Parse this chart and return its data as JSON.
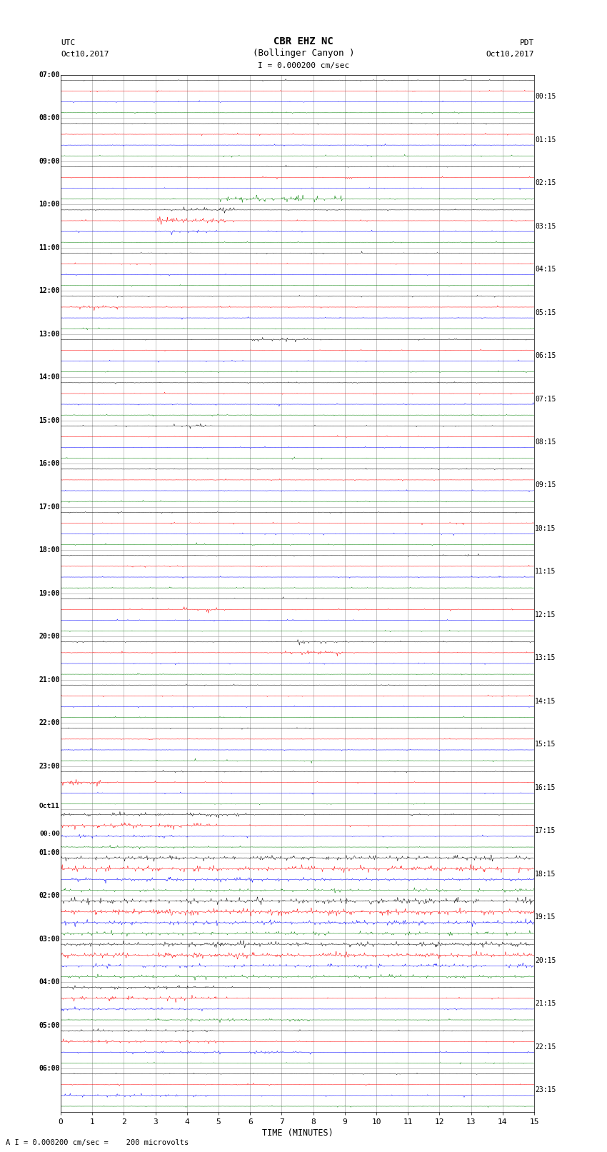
{
  "title_line1": "CBR EHZ NC",
  "title_line2": "(Bollinger Canyon )",
  "scale_label": "I = 0.000200 cm/sec",
  "footer_label": "A I = 0.000200 cm/sec =    200 microvolts",
  "left_header_line1": "UTC",
  "left_header_line2": "Oct10,2017",
  "right_header_line1": "PDT",
  "right_header_line2": "Oct10,2017",
  "xlabel": "TIME (MINUTES)",
  "utc_labels": [
    "07:00",
    "08:00",
    "09:00",
    "10:00",
    "11:00",
    "12:00",
    "13:00",
    "14:00",
    "15:00",
    "16:00",
    "17:00",
    "18:00",
    "19:00",
    "20:00",
    "21:00",
    "22:00",
    "23:00",
    "Oct11\n00:00",
    "01:00",
    "02:00",
    "03:00",
    "04:00",
    "05:00",
    "06:00"
  ],
  "pdt_labels": [
    "00:15",
    "01:15",
    "02:15",
    "03:15",
    "04:15",
    "05:15",
    "06:15",
    "07:15",
    "08:15",
    "09:15",
    "10:15",
    "11:15",
    "12:15",
    "13:15",
    "14:15",
    "15:15",
    "16:15",
    "17:15",
    "18:15",
    "19:15",
    "20:15",
    "21:15",
    "22:15",
    "23:15"
  ],
  "num_rows": 24,
  "traces_per_row": 4,
  "trace_colors": [
    "black",
    "red",
    "blue",
    "green"
  ],
  "background_color": "white",
  "grid_color": "#999999",
  "figsize": [
    8.5,
    16.13
  ],
  "dpi": 100,
  "base_noise": 0.012,
  "spike_rate": 0.015,
  "spike_amp": 0.12,
  "xmin": 0,
  "xmax": 15,
  "xticks": [
    0,
    1,
    2,
    3,
    4,
    5,
    6,
    7,
    8,
    9,
    10,
    11,
    12,
    13,
    14,
    15
  ],
  "row_events": {
    "2": [
      {
        "trace": 3,
        "t0": 5.0,
        "t1": 9.0,
        "amp": 0.35,
        "rate": 0.15
      }
    ],
    "3": [
      {
        "trace": 0,
        "t0": 3.5,
        "t1": 5.5,
        "amp": 0.28,
        "rate": 0.12
      },
      {
        "trace": 1,
        "t0": 3.0,
        "t1": 5.5,
        "amp": 0.38,
        "rate": 0.18
      },
      {
        "trace": 2,
        "t0": 3.0,
        "t1": 5.0,
        "amp": 0.28,
        "rate": 0.12
      }
    ],
    "5": [
      {
        "trace": 1,
        "t0": 0.3,
        "t1": 1.8,
        "amp": 0.25,
        "rate": 0.12
      }
    ],
    "6": [
      {
        "trace": 0,
        "t0": 6.0,
        "t1": 8.0,
        "amp": 0.22,
        "rate": 0.1
      }
    ],
    "8": [
      {
        "trace": 0,
        "t0": 3.0,
        "t1": 5.0,
        "amp": 0.22,
        "rate": 0.1
      }
    ],
    "12": [
      {
        "trace": 1,
        "t0": 3.8,
        "t1": 5.2,
        "amp": 0.28,
        "rate": 0.12
      }
    ],
    "13": [
      {
        "trace": 1,
        "t0": 7.0,
        "t1": 9.0,
        "amp": 0.32,
        "rate": 0.15
      },
      {
        "trace": 0,
        "t0": 7.5,
        "t1": 9.0,
        "amp": 0.22,
        "rate": 0.1
      }
    ],
    "16": [
      {
        "trace": 1,
        "t0": 0.0,
        "t1": 1.5,
        "amp": 0.35,
        "rate": 0.18
      }
    ],
    "17": [
      {
        "trace": 0,
        "t0": 0.0,
        "t1": 6.0,
        "amp": 0.22,
        "rate": 0.1
      },
      {
        "trace": 1,
        "t0": 0.0,
        "t1": 5.0,
        "amp": 0.32,
        "rate": 0.15
      },
      {
        "trace": 2,
        "t0": 0.0,
        "t1": 4.0,
        "amp": 0.22,
        "rate": 0.1
      },
      {
        "trace": 3,
        "t0": 0.0,
        "t1": 4.0,
        "amp": 0.2,
        "rate": 0.1
      }
    ],
    "18": [
      {
        "trace": 0,
        "t0": 0.0,
        "t1": 15.0,
        "amp": 0.28,
        "rate": 0.15
      },
      {
        "trace": 1,
        "t0": 0.0,
        "t1": 15.0,
        "amp": 0.32,
        "rate": 0.18
      },
      {
        "trace": 2,
        "t0": 0.0,
        "t1": 15.0,
        "amp": 0.22,
        "rate": 0.12
      },
      {
        "trace": 3,
        "t0": 0.0,
        "t1": 15.0,
        "amp": 0.2,
        "rate": 0.1
      }
    ],
    "19": [
      {
        "trace": 0,
        "t0": 0.0,
        "t1": 15.0,
        "amp": 0.3,
        "rate": 0.18
      },
      {
        "trace": 1,
        "t0": 0.0,
        "t1": 15.0,
        "amp": 0.35,
        "rate": 0.2
      },
      {
        "trace": 2,
        "t0": 0.0,
        "t1": 15.0,
        "amp": 0.25,
        "rate": 0.15
      },
      {
        "trace": 3,
        "t0": 0.0,
        "t1": 15.0,
        "amp": 0.22,
        "rate": 0.12
      }
    ],
    "20": [
      {
        "trace": 0,
        "t0": 0.0,
        "t1": 15.0,
        "amp": 0.28,
        "rate": 0.15
      },
      {
        "trace": 1,
        "t0": 0.0,
        "t1": 15.0,
        "amp": 0.3,
        "rate": 0.18
      },
      {
        "trace": 2,
        "t0": 0.0,
        "t1": 15.0,
        "amp": 0.22,
        "rate": 0.12
      },
      {
        "trace": 3,
        "t0": 0.0,
        "t1": 15.0,
        "amp": 0.2,
        "rate": 0.1
      }
    ],
    "21": [
      {
        "trace": 0,
        "t0": 0.0,
        "t1": 5.0,
        "amp": 0.22,
        "rate": 0.12
      },
      {
        "trace": 1,
        "t0": 0.0,
        "t1": 5.0,
        "amp": 0.28,
        "rate": 0.15
      },
      {
        "trace": 2,
        "t0": 0.0,
        "t1": 5.0,
        "amp": 0.2,
        "rate": 0.1
      },
      {
        "trace": 3,
        "t0": 3.0,
        "t1": 8.0,
        "amp": 0.18,
        "rate": 0.1
      }
    ],
    "22": [
      {
        "trace": 0,
        "t0": 0.0,
        "t1": 5.0,
        "amp": 0.18,
        "rate": 0.1
      },
      {
        "trace": 1,
        "t0": 0.0,
        "t1": 5.0,
        "amp": 0.22,
        "rate": 0.12
      },
      {
        "trace": 2,
        "t0": 2.0,
        "t1": 8.0,
        "amp": 0.18,
        "rate": 0.1
      }
    ],
    "23": [
      {
        "trace": 2,
        "t0": 0.0,
        "t1": 5.0,
        "amp": 0.18,
        "rate": 0.1
      }
    ]
  }
}
